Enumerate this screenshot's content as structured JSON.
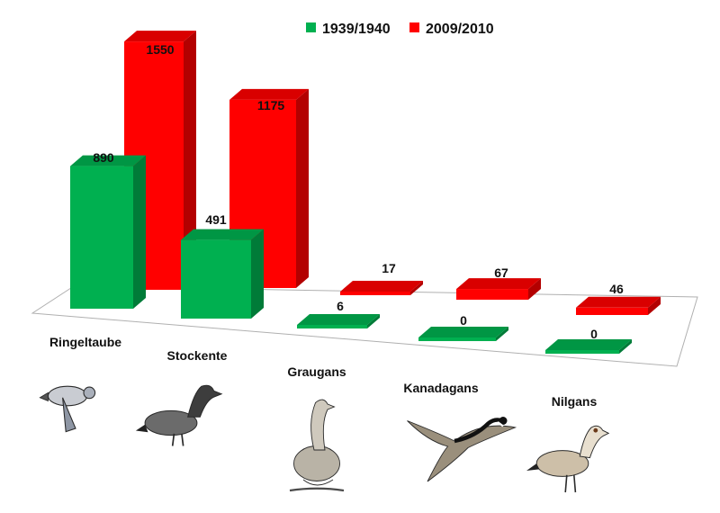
{
  "chart_data": {
    "type": "bar",
    "categories": [
      "Ringeltaube",
      "Stockente",
      "Graugans",
      "Kanadagans",
      "Nilgans"
    ],
    "series": [
      {
        "name": "1939/1940",
        "values": [
          890,
          491,
          6,
          0,
          0
        ]
      },
      {
        "name": "2009/2010",
        "values": [
          1550,
          1175,
          17,
          67,
          46
        ]
      }
    ],
    "data_labels": [
      [
        "890",
        "491",
        "6",
        "0",
        "0"
      ],
      [
        "1550",
        "1175",
        "17",
        "67",
        "46"
      ]
    ],
    "legend_position": "top",
    "grid": false,
    "three_d": true
  },
  "colors": {
    "series_1": "#00b050",
    "series_2": "#ff0000"
  },
  "icons": [
    "ringeltaube-icon",
    "stockente-icon",
    "graugans-icon",
    "kanadagans-icon",
    "nilgans-icon"
  ]
}
